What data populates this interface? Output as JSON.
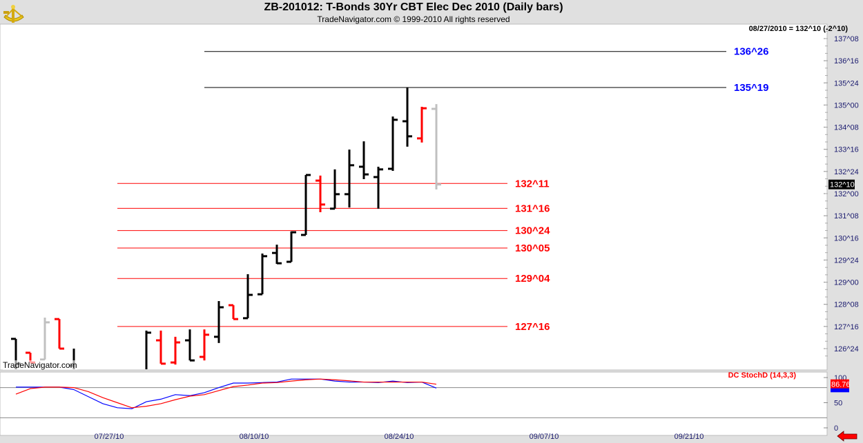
{
  "header": {
    "title": "ZB-201012:  T-Bonds 30Yr CBT Elec Dec 2010  (Daily bars)",
    "subtitle": "TradeNavigator.com © 1999-2010 All rights reserved",
    "readout": "08/27/2010 = 132^10 (-2^10)",
    "watermark": "TradeNavigator.com",
    "logo": "sextant-logo"
  },
  "colors": {
    "up": "#000000",
    "down": "#ff0000",
    "last": "#c0c0c0",
    "resistance": "#0000ff",
    "support": "#ff0000",
    "axis_text": "#1a1a6e",
    "stoch_k": "#0000ff",
    "stoch_d": "#ff0000"
  },
  "chart_data": [
    {
      "type": "ohlc",
      "title": "ZB-201012:  T-Bonds 30Yr CBT Elec Dec 2010  (Daily bars)",
      "ylim": [
        126.4,
        137.7
      ],
      "y_tick_labels": [
        "137^08",
        "136^16",
        "135^24",
        "135^00",
        "134^08",
        "133^16",
        "132^24",
        "132^00",
        "131^08",
        "130^16",
        "129^24",
        "129^00",
        "128^08",
        "127^16",
        "126^24"
      ],
      "last_price_label": "132^10",
      "x_tick_labels": [
        "07/27/10",
        "08/10/10",
        "08/24/10",
        "09/07/10",
        "09/21/10"
      ],
      "bars": [
        {
          "date": "2010-07-19",
          "open": 127.08,
          "high": 127.08,
          "low": 125.96,
          "close": 126.24,
          "color": "up"
        },
        {
          "date": "2010-07-20",
          "open": 126.61,
          "high": 126.61,
          "low": 126.28,
          "close": 126.28,
          "color": "down"
        },
        {
          "date": "2010-07-21",
          "open": 126.38,
          "high": 127.8,
          "low": 126.38,
          "close": 127.64,
          "color": "last"
        },
        {
          "date": "2010-07-22",
          "open": 127.75,
          "high": 127.75,
          "low": 126.75,
          "close": 126.75,
          "color": "down"
        },
        {
          "date": "2010-07-23",
          "open": 126.17,
          "high": 126.75,
          "low": 125.9,
          "close": 126.0,
          "color": "up"
        },
        {
          "date": "2010-07-30",
          "open": 126.0,
          "high": 127.36,
          "low": 125.9,
          "close": 127.29,
          "color": "up"
        },
        {
          "date": "2010-08-02",
          "open": 127.03,
          "high": 127.36,
          "low": 126.24,
          "close": 126.24,
          "color": "down"
        },
        {
          "date": "2010-08-03",
          "open": 126.28,
          "high": 127.15,
          "low": 126.21,
          "close": 126.96,
          "color": "down"
        },
        {
          "date": "2010-08-04",
          "open": 127.03,
          "high": 127.4,
          "low": 126.35,
          "close": 126.35,
          "color": "up"
        },
        {
          "date": "2010-08-05",
          "open": 126.47,
          "high": 127.4,
          "low": 126.35,
          "close": 127.22,
          "color": "down"
        },
        {
          "date": "2010-08-06",
          "open": 127.15,
          "high": 128.36,
          "low": 126.94,
          "close": 128.15,
          "color": "up"
        },
        {
          "date": "2010-08-09",
          "open": 128.22,
          "high": 128.22,
          "low": 127.75,
          "close": 127.75,
          "color": "down"
        },
        {
          "date": "2010-08-10",
          "open": 127.78,
          "high": 129.27,
          "low": 127.78,
          "close": 128.57,
          "color": "up"
        },
        {
          "date": "2010-08-11",
          "open": 128.59,
          "high": 129.97,
          "low": 128.59,
          "close": 129.88,
          "color": "up"
        },
        {
          "date": "2010-08-12",
          "open": 129.99,
          "high": 130.27,
          "low": 129.62,
          "close": 129.64,
          "color": "up"
        },
        {
          "date": "2010-08-13",
          "open": 129.69,
          "high": 130.72,
          "low": 129.69,
          "close": 130.69,
          "color": "up"
        },
        {
          "date": "2010-08-16",
          "open": 130.6,
          "high": 132.63,
          "low": 130.6,
          "close": 132.63,
          "color": "up"
        },
        {
          "date": "2010-08-17",
          "open": 132.44,
          "high": 132.61,
          "low": 131.37,
          "close": 131.63,
          "color": "down"
        },
        {
          "date": "2010-08-18",
          "open": 131.49,
          "high": 132.82,
          "low": 131.49,
          "close": 131.98,
          "color": "up"
        },
        {
          "date": "2010-08-19",
          "open": 131.98,
          "high": 133.49,
          "low": 131.53,
          "close": 132.96,
          "color": "up"
        },
        {
          "date": "2010-08-20",
          "open": 132.91,
          "high": 133.77,
          "low": 132.49,
          "close": 132.65,
          "color": "up"
        },
        {
          "date": "2010-08-23",
          "open": 132.56,
          "high": 132.91,
          "low": 131.49,
          "close": 132.82,
          "color": "up"
        },
        {
          "date": "2010-08-24",
          "open": 132.84,
          "high": 134.61,
          "low": 132.77,
          "close": 134.5,
          "color": "up"
        },
        {
          "date": "2010-08-25",
          "open": 134.45,
          "high": 135.59,
          "low": 133.59,
          "close": 133.94,
          "color": "up"
        },
        {
          "date": "2010-08-26",
          "open": 133.87,
          "high": 134.94,
          "low": 133.73,
          "close": 134.89,
          "color": "down"
        },
        {
          "date": "2010-08-27",
          "open": 134.87,
          "high": 135.03,
          "low": 132.14,
          "close": 132.31,
          "color": "last"
        }
      ],
      "levels": [
        {
          "label": "136^26",
          "price": 136.8125,
          "kind": "resistance",
          "from": "2010-08-05"
        },
        {
          "label": "135^19",
          "price": 135.59375,
          "kind": "resistance",
          "from": "2010-08-05"
        },
        {
          "label": "132^11",
          "price": 132.34375,
          "kind": "support",
          "from": "2010-07-28"
        },
        {
          "label": "131^16",
          "price": 131.5,
          "kind": "support",
          "from": "2010-07-28"
        },
        {
          "label": "130^24",
          "price": 130.75,
          "kind": "support",
          "from": "2010-07-28"
        },
        {
          "label": "130^05",
          "price": 130.15625,
          "kind": "support",
          "from": "2010-07-28"
        },
        {
          "label": "129^04",
          "price": 129.125,
          "kind": "support",
          "from": "2010-07-28"
        },
        {
          "label": "127^16",
          "price": 127.5,
          "kind": "support",
          "from": "2010-07-28"
        }
      ]
    },
    {
      "type": "line",
      "title": "DC StochD (14,3,3)",
      "ylim": [
        0,
        100
      ],
      "y_tick_labels": [
        "100",
        "50",
        "0"
      ],
      "reference_lines": [
        80,
        20
      ],
      "last_value_label": "86.76",
      "dates": [
        "2010-07-19",
        "2010-07-20",
        "2010-07-21",
        "2010-07-22",
        "2010-07-23",
        "2010-07-26",
        "2010-07-27",
        "2010-07-28",
        "2010-07-29",
        "2010-07-30",
        "2010-08-02",
        "2010-08-03",
        "2010-08-04",
        "2010-08-05",
        "2010-08-06",
        "2010-08-09",
        "2010-08-10",
        "2010-08-11",
        "2010-08-12",
        "2010-08-13",
        "2010-08-16",
        "2010-08-17",
        "2010-08-18",
        "2010-08-19",
        "2010-08-20",
        "2010-08-23",
        "2010-08-24",
        "2010-08-25",
        "2010-08-26",
        "2010-08-27"
      ],
      "series": [
        {
          "color": "stoch_k",
          "values": [
            81,
            81,
            81,
            81,
            76,
            62,
            48,
            40,
            38,
            52,
            57,
            66,
            64,
            70,
            80,
            89,
            89,
            90,
            91,
            97,
            97,
            97,
            93,
            91,
            91,
            90,
            93,
            90,
            91,
            79
          ]
        },
        {
          "color": "stoch_d",
          "values": [
            67,
            78,
            81,
            81,
            80,
            72,
            60,
            50,
            40,
            43,
            48,
            56,
            63,
            66,
            74,
            82,
            85,
            89,
            90,
            93,
            95.5,
            97,
            95.5,
            93.5,
            91,
            91,
            91,
            91,
            91,
            86.76
          ]
        }
      ]
    }
  ]
}
